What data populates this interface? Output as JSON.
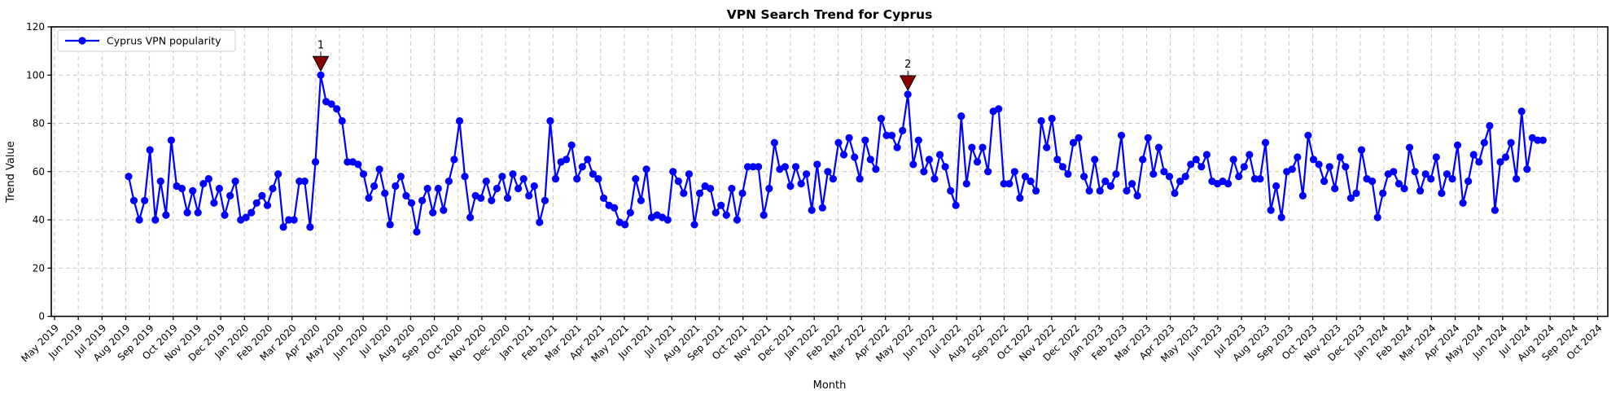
{
  "chart_data": {
    "type": "line",
    "title": "VPN Search Trend for Cyprus",
    "xlabel": "Month",
    "ylabel": "Trend Value",
    "ylim": [
      0,
      120
    ],
    "yticks": [
      0,
      20,
      40,
      60,
      80,
      100,
      120
    ],
    "grid": true,
    "grid_style": "dashed",
    "legend_position": "upper left",
    "x_tick_labels": [
      "May 2019",
      "Jun 2019",
      "Jul 2019",
      "Aug 2019",
      "Sep 2019",
      "Oct 2019",
      "Nov 2019",
      "Dec 2019",
      "Jan 2020",
      "Feb 2020",
      "Mar 2020",
      "Apr 2020",
      "May 2020",
      "Jun 2020",
      "Jul 2020",
      "Aug 2020",
      "Sep 2020",
      "Oct 2020",
      "Nov 2020",
      "Dec 2020",
      "Jan 2021",
      "Feb 2021",
      "Mar 2021",
      "Apr 2021",
      "May 2021",
      "Jun 2021",
      "Jul 2021",
      "Aug 2021",
      "Sep 2021",
      "Oct 2021",
      "Nov 2021",
      "Dec 2021",
      "Jan 2022",
      "Feb 2022",
      "Mar 2022",
      "Apr 2022",
      "May 2022",
      "Jun 2022",
      "Jul 2022",
      "Aug 2022",
      "Sep 2022",
      "Oct 2022",
      "Nov 2022",
      "Dec 2022",
      "Jan 2023",
      "Feb 2023",
      "Mar 2023",
      "Apr 2023",
      "May 2023",
      "Jun 2023",
      "Jul 2023",
      "Aug 2023",
      "Sep 2023",
      "Oct 2023",
      "Nov 2023",
      "Dec 2023",
      "Jan 2024",
      "Feb 2024",
      "Mar 2024",
      "Apr 2024",
      "May 2024",
      "Jun 2024",
      "Jul 2024",
      "Aug 2024",
      "Sep 2024",
      "Oct 2024"
    ],
    "x_domain_months": [
      3.12,
      62.7
    ],
    "series": [
      {
        "name": "Cyprus VPN popularity",
        "color": "#0000ff",
        "marker": "o",
        "values": [
          58,
          48,
          40,
          48,
          69,
          40,
          56,
          42,
          73,
          54,
          53,
          43,
          52,
          43,
          55,
          57,
          47,
          53,
          42,
          50,
          56,
          40,
          41,
          43,
          47,
          50,
          46,
          53,
          59,
          37,
          40,
          40,
          56,
          56,
          37,
          64,
          100,
          89,
          88,
          86,
          81,
          64,
          64,
          63,
          59,
          49,
          54,
          61,
          51,
          38,
          54,
          58,
          50,
          47,
          35,
          48,
          53,
          43,
          53,
          44,
          56,
          65,
          81,
          58,
          41,
          50,
          49,
          56,
          48,
          53,
          58,
          49,
          59,
          53,
          57,
          50,
          54,
          39,
          48,
          81,
          57,
          64,
          65,
          71,
          57,
          62,
          65,
          59,
          57,
          49,
          46,
          45,
          39,
          38,
          43,
          57,
          48,
          61,
          41,
          42,
          41,
          40,
          60,
          56,
          51,
          59,
          38,
          51,
          54,
          53,
          43,
          46,
          42,
          53,
          40,
          51,
          62,
          62,
          62,
          42,
          53,
          72,
          61,
          62,
          54,
          62,
          55,
          59,
          44,
          63,
          45,
          60,
          57,
          72,
          67,
          74,
          66,
          57,
          73,
          65,
          61,
          82,
          75,
          75,
          70,
          77,
          92,
          63,
          73,
          60,
          65,
          57,
          67,
          62,
          52,
          46,
          83,
          55,
          70,
          64,
          70,
          60,
          85,
          86,
          55,
          55,
          60,
          49,
          58,
          56,
          52,
          81,
          70,
          82,
          65,
          62,
          59,
          72,
          74,
          58,
          52,
          65,
          52,
          56,
          54,
          59,
          75,
          52,
          55,
          50,
          65,
          74,
          59,
          70,
          60,
          58,
          51,
          56,
          58,
          63,
          65,
          62,
          67,
          56,
          55,
          56,
          55,
          65,
          58,
          62,
          67,
          57,
          57,
          72,
          44,
          54,
          41,
          60,
          61,
          66,
          50,
          75,
          65,
          63,
          56,
          62,
          53,
          66,
          62,
          49,
          51,
          69,
          57,
          56,
          41,
          51,
          59,
          60,
          55,
          53,
          70,
          60,
          52,
          59,
          57,
          66,
          51,
          59,
          57,
          71,
          47,
          56,
          67,
          64,
          72,
          79,
          44,
          64,
          66,
          72,
          57,
          85,
          61,
          74,
          73,
          73
        ]
      }
    ],
    "annotations": [
      {
        "label": "1",
        "point_index": 36,
        "value": 100,
        "color": "#8b0000"
      },
      {
        "label": "2",
        "point_index": 146,
        "value": 92,
        "color": "#8b0000"
      }
    ],
    "colors": {
      "line": "#0000ff",
      "annotation": "#8b0000",
      "grid": "#c7c7c7",
      "background": "#ffffff"
    }
  }
}
